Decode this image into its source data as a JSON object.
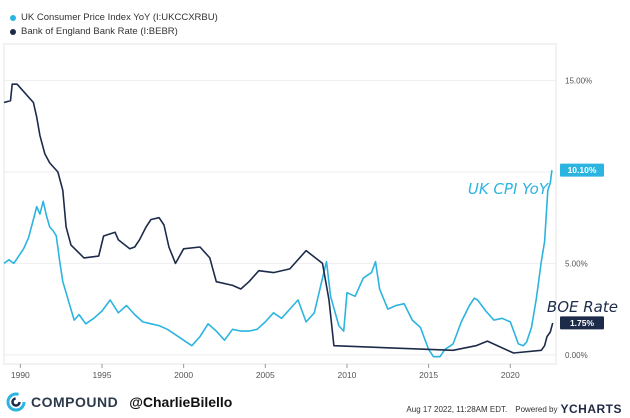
{
  "legend": [
    {
      "label": "UK Consumer Price Index YoY (I:UKCCXRBU)",
      "color": "#2bb4e0"
    },
    {
      "label": "Bank of England Bank Rate (I:BEBR)",
      "color": "#1c2b4a"
    }
  ],
  "annotations": {
    "cpi": "UK CPI YoY",
    "boe": "BOE Rate"
  },
  "footer": {
    "brand": "COMPOUND",
    "handle": "@CharlieBilello",
    "timestamp": "Aug 17 2022, 11:28AM EDT.",
    "powered_by": "Powered by",
    "provider": "YCHARTS"
  },
  "chart_data": {
    "type": "line",
    "xlim": [
      1989.0,
      2022.8
    ],
    "ylim": [
      -0.5,
      17
    ],
    "x_ticks": [
      1990,
      1995,
      2000,
      2005,
      2010,
      2015,
      2020
    ],
    "x_tick_labels": [
      "1990",
      "1995",
      "2000",
      "2005",
      "2010",
      "2015",
      "2020"
    ],
    "y_ticks": [
      0,
      5,
      10,
      15
    ],
    "y_tick_labels": [
      "0.00%",
      "5.00%",
      "10.00%",
      "15.00%"
    ],
    "grid": true,
    "series": [
      {
        "name": "UK Consumer Price Index YoY (I:UKCCXRBU)",
        "color": "#2bb4e0",
        "last_value_label": "10.10%",
        "points": [
          [
            1989.0,
            5.0
          ],
          [
            1989.3,
            5.2
          ],
          [
            1989.6,
            5.0
          ],
          [
            1989.9,
            5.4
          ],
          [
            1990.2,
            5.8
          ],
          [
            1990.5,
            6.4
          ],
          [
            1990.8,
            7.4
          ],
          [
            1991.0,
            8.1
          ],
          [
            1991.2,
            7.7
          ],
          [
            1991.4,
            8.4
          ],
          [
            1991.6,
            7.6
          ],
          [
            1991.8,
            7.0
          ],
          [
            1992.0,
            6.8
          ],
          [
            1992.2,
            6.5
          ],
          [
            1992.4,
            5.2
          ],
          [
            1992.6,
            4.0
          ],
          [
            1992.8,
            3.4
          ],
          [
            1993.0,
            2.8
          ],
          [
            1993.3,
            1.9
          ],
          [
            1993.6,
            2.2
          ],
          [
            1994.0,
            1.7
          ],
          [
            1994.5,
            2.0
          ],
          [
            1995.0,
            2.4
          ],
          [
            1995.5,
            3.0
          ],
          [
            1996.0,
            2.3
          ],
          [
            1996.5,
            2.7
          ],
          [
            1997.0,
            2.2
          ],
          [
            1997.5,
            1.8
          ],
          [
            1998.0,
            1.7
          ],
          [
            1998.5,
            1.6
          ],
          [
            1999.0,
            1.4
          ],
          [
            1999.5,
            1.1
          ],
          [
            2000.0,
            0.8
          ],
          [
            2000.5,
            0.5
          ],
          [
            2001.0,
            1.0
          ],
          [
            2001.5,
            1.7
          ],
          [
            2002.0,
            1.3
          ],
          [
            2002.5,
            0.8
          ],
          [
            2003.0,
            1.4
          ],
          [
            2003.5,
            1.3
          ],
          [
            2004.0,
            1.3
          ],
          [
            2004.5,
            1.4
          ],
          [
            2005.0,
            1.8
          ],
          [
            2005.5,
            2.3
          ],
          [
            2006.0,
            2.0
          ],
          [
            2006.5,
            2.5
          ],
          [
            2007.0,
            3.0
          ],
          [
            2007.5,
            1.8
          ],
          [
            2008.0,
            2.3
          ],
          [
            2008.5,
            4.2
          ],
          [
            2008.75,
            5.1
          ],
          [
            2009.0,
            3.2
          ],
          [
            2009.5,
            1.6
          ],
          [
            2009.8,
            1.3
          ],
          [
            2010.0,
            3.4
          ],
          [
            2010.5,
            3.2
          ],
          [
            2011.0,
            4.2
          ],
          [
            2011.5,
            4.5
          ],
          [
            2011.75,
            5.1
          ],
          [
            2012.0,
            3.6
          ],
          [
            2012.5,
            2.5
          ],
          [
            2013.0,
            2.7
          ],
          [
            2013.5,
            2.8
          ],
          [
            2014.0,
            1.9
          ],
          [
            2014.5,
            1.5
          ],
          [
            2015.0,
            0.3
          ],
          [
            2015.3,
            -0.1
          ],
          [
            2015.7,
            -0.1
          ],
          [
            2016.0,
            0.3
          ],
          [
            2016.5,
            0.6
          ],
          [
            2017.0,
            1.8
          ],
          [
            2017.5,
            2.7
          ],
          [
            2017.8,
            3.1
          ],
          [
            2018.0,
            3.0
          ],
          [
            2018.5,
            2.4
          ],
          [
            2019.0,
            1.9
          ],
          [
            2019.5,
            2.0
          ],
          [
            2020.0,
            1.8
          ],
          [
            2020.5,
            0.6
          ],
          [
            2020.8,
            0.5
          ],
          [
            2021.0,
            0.7
          ],
          [
            2021.3,
            1.5
          ],
          [
            2021.6,
            3.1
          ],
          [
            2021.9,
            5.1
          ],
          [
            2022.1,
            6.2
          ],
          [
            2022.3,
            9.0
          ],
          [
            2022.45,
            9.4
          ],
          [
            2022.55,
            10.1
          ]
        ]
      },
      {
        "name": "Bank of England Bank Rate (I:BEBR)",
        "color": "#1c2b4a",
        "last_value_label": "1.75%",
        "points": [
          [
            1989.0,
            13.8
          ],
          [
            1989.4,
            13.9
          ],
          [
            1989.5,
            14.8
          ],
          [
            1989.8,
            14.8
          ],
          [
            1990.8,
            13.8
          ],
          [
            1991.0,
            13.0
          ],
          [
            1991.2,
            12.0
          ],
          [
            1991.5,
            11.0
          ],
          [
            1991.8,
            10.5
          ],
          [
            1992.3,
            10.0
          ],
          [
            1992.6,
            9.0
          ],
          [
            1992.8,
            7.0
          ],
          [
            1993.1,
            6.0
          ],
          [
            1993.9,
            5.3
          ],
          [
            1994.8,
            5.4
          ],
          [
            1995.1,
            6.5
          ],
          [
            1995.8,
            6.7
          ],
          [
            1996.0,
            6.3
          ],
          [
            1996.7,
            5.8
          ],
          [
            1997.0,
            5.9
          ],
          [
            1997.3,
            6.3
          ],
          [
            1997.7,
            7.0
          ],
          [
            1998.0,
            7.4
          ],
          [
            1998.5,
            7.5
          ],
          [
            1998.8,
            7.1
          ],
          [
            1999.1,
            5.9
          ],
          [
            1999.5,
            5.0
          ],
          [
            2000.0,
            5.8
          ],
          [
            2001.0,
            5.9
          ],
          [
            2001.6,
            5.3
          ],
          [
            2002.0,
            4.0
          ],
          [
            2003.0,
            3.8
          ],
          [
            2003.5,
            3.6
          ],
          [
            2004.0,
            4.0
          ],
          [
            2004.6,
            4.6
          ],
          [
            2005.5,
            4.5
          ],
          [
            2006.5,
            4.7
          ],
          [
            2007.5,
            5.7
          ],
          [
            2008.5,
            5.0
          ],
          [
            2008.9,
            3.0
          ],
          [
            2009.2,
            0.5
          ],
          [
            2016.5,
            0.25
          ],
          [
            2017.9,
            0.5
          ],
          [
            2018.6,
            0.75
          ],
          [
            2020.2,
            0.1
          ],
          [
            2021.9,
            0.25
          ],
          [
            2022.1,
            0.5
          ],
          [
            2022.25,
            1.0
          ],
          [
            2022.45,
            1.25
          ],
          [
            2022.6,
            1.75
          ]
        ]
      }
    ]
  }
}
